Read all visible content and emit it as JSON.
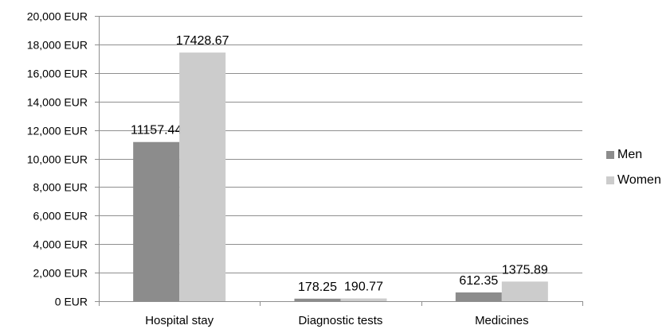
{
  "chart_data": {
    "type": "bar",
    "categories": [
      "Hospital stay",
      "Diagnostic tests",
      "Medicines"
    ],
    "series": [
      {
        "name": "Men",
        "values": [
          11157.44,
          178.25,
          612.35
        ],
        "color": "#8c8c8c"
      },
      {
        "name": "Women",
        "values": [
          17428.67,
          190.77,
          1375.89
        ],
        "color": "#cccccc"
      }
    ],
    "data_labels": [
      [
        "11157.44",
        "178.25",
        "612.35"
      ],
      [
        "17428.67",
        "190.77",
        "1375.89"
      ]
    ],
    "yticks": [
      "0 EUR",
      "2,000 EUR",
      "4,000 EUR",
      "6,000 EUR",
      "8,000 EUR",
      "10,000 EUR",
      "12,000 EUR",
      "14,000 EUR",
      "16,000 EUR",
      "18,000 EUR",
      "20,000 EUR"
    ],
    "ylim": [
      0,
      20000
    ],
    "grid": true,
    "legend_position": "right"
  }
}
